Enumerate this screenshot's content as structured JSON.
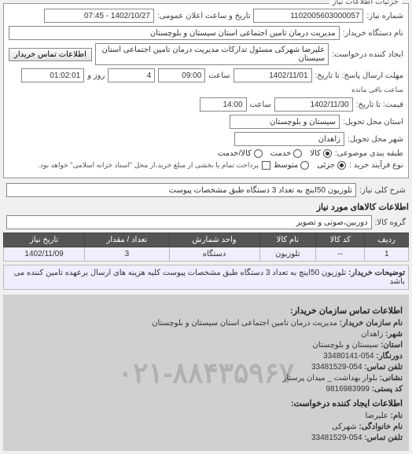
{
  "panel_title": "جزئیات اطلاعات نیاز",
  "req_no_label": "شماره نیاز:",
  "req_no": "1102005603000057",
  "announce_label": "تاریخ و ساعت اعلان عمومی:",
  "announce_value": "1402/10/27 - 07:45",
  "buyer_org_label": "نام دستگاه خریدار:",
  "buyer_org": "مدیریت درمان تامین اجتماعی استان سیستان و بلوچستان",
  "requester_label": "ایجاد کننده درخواست:",
  "requester": "علیرضا شهرکی مسئول تدارکات مدیریت درمان تامین اجتماعی استان سیستان",
  "buyer_contact_btn": "اطلاعات تماس خریدار",
  "deadline_label": "مهلت ارسال پاسخ: تا تاریخ:",
  "deadline_date": "1402/11/01",
  "time_label": "ساعت",
  "deadline_time": "09:00",
  "remain_days": "4",
  "day_label": "روز و",
  "remain_time": "01:02:01",
  "remain_suffix": "ساعت باقی مانده",
  "price_valid_label": "قیمت: تا تاریخ:",
  "price_date": "1402/11/30",
  "price_time": "14:00",
  "province_label": "استان محل تحویل:",
  "province": "سیستان و بلوچستان",
  "city_label": "شهر محل تحویل:",
  "city": "زاهدان",
  "category_label": "طبقه بندی موضوعی:",
  "radio_all": "کالا",
  "radio_service": "خدمت",
  "radio_both": "کالا/خدمت",
  "purchase_type_label": "نوع فرآیند خرید :",
  "pt_low": "جزئی",
  "pt_mid": "متوسط",
  "pt_note": "پرداخت تمام یا بخشی از مبلغ خرید،از محل \"اسناد خزانه اسلامی\" خواهد بود.",
  "desc_label": "شرح کلی نیاز:",
  "desc": "تلوزیون 50اینچ به تعداد 3 دستگاه طبق مشخصات پیوست",
  "items_header": "اطلاعات کالاهای مورد نیاز",
  "group_label": "گروه کالا:",
  "group": "دوربین،صوتی و تصویر",
  "table": {
    "cols": [
      "ردیف",
      "کد کالا",
      "نام کالا",
      "واحد شمارش",
      "تعداد / مقدار",
      "تاریخ نیاز"
    ],
    "row": [
      "1",
      "--",
      "تلوزیون",
      "دستگاه",
      "3",
      "1402/11/09"
    ]
  },
  "buyer_desc_label": "توضیحات خریدار:",
  "buyer_desc": "تلوزیون 50اینچ به تعداد 3 دستگاه طبق مشخصات پیوست کلیه هزینه های ارسال برعهده تامین کننده می باشد",
  "contact_header": "اطلاعات تماس سازمان خریدار:",
  "contacts": [
    {
      "k": "نام سازمان خریدار:",
      "v": "مدیریت درمان تامین اجتماعی استان سیستان و بلوچستان"
    },
    {
      "k": "شهر:",
      "v": "زاهدان"
    },
    {
      "k": "استان:",
      "v": "سیستان و بلوچستان"
    },
    {
      "k": "دورنگار:",
      "v": "054-33480141"
    },
    {
      "k": "تلفن تماس:",
      "v": "054-33481529"
    },
    {
      "k": "نشانی:",
      "v": "بلوار بهداشت _ میدان پرستار"
    },
    {
      "k": "کد پستی:",
      "v": "9816983999"
    }
  ],
  "creator_header": "اطلاعات ایجاد کننده درخواست:",
  "creator": [
    {
      "k": "نام:",
      "v": "علیرضا"
    },
    {
      "k": "نام خانوادگی:",
      "v": "شهرکی"
    },
    {
      "k": "تلفن تماس:",
      "v": "054-33481529"
    }
  ],
  "watermark": "۰۲۱-۸۸۴۳۵۹۶۷"
}
